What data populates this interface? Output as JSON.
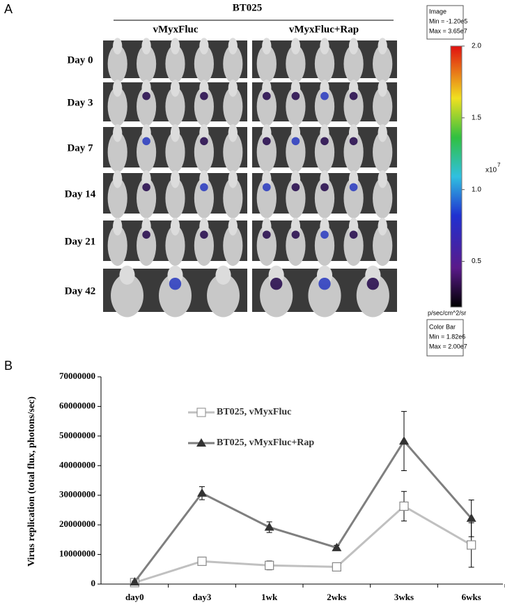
{
  "panel_a": {
    "label": "A",
    "group": "BT025",
    "columns": [
      "vMyxFluc",
      "vMyxFluc+Rap"
    ],
    "rows": [
      "Day 0",
      "Day 3",
      "Day 7",
      "Day 14",
      "Day 21",
      "Day 42"
    ],
    "image_box": [
      "Image",
      "Min = -1.20e5",
      "Max = 3.65e7"
    ],
    "colorbar": {
      "lim": [
        0.182,
        2.0
      ],
      "ticks": [
        {
          "value": 2.0,
          "label": "2.0"
        },
        {
          "value": 1.5,
          "label": "1.5"
        },
        {
          "value": 1.0,
          "label": "1.0"
        },
        {
          "value": 0.5,
          "label": "0.5"
        }
      ],
      "multiplier": "x10",
      "multiplier_exp": "7",
      "unit": "p/sec/cm^2/sr"
    },
    "colorbar_box": [
      "Color Bar",
      "Min = 1.82e6",
      "Max = 2.00e7"
    ]
  },
  "chart_data": {
    "type": "line",
    "panel_label": "B",
    "y_label": "Virus replication (total flux, photons/sec)",
    "categories": [
      "day0",
      "day3",
      "1wk",
      "2wks",
      "3wks",
      "6wks"
    ],
    "ylim": [
      0,
      70000000
    ],
    "yticks": [
      0,
      10000000,
      20000000,
      30000000,
      40000000,
      50000000,
      60000000,
      70000000
    ],
    "series": [
      {
        "name": "BT025, vMyxFluc",
        "color": "#c0c0c0",
        "marker": "square",
        "values": [
          500000,
          7700000,
          6300000,
          5800000,
          26300000,
          13200000
        ],
        "errors": [
          300000,
          500000,
          1500000,
          500000,
          5000000,
          7500000
        ]
      },
      {
        "name": "BT025, vMyxFluc+Rap",
        "color": "#7f7f7f",
        "marker": "triangle",
        "values": [
          700000,
          30700000,
          19200000,
          12300000,
          48300000,
          22200000
        ],
        "errors": [
          300000,
          2200000,
          1800000,
          800000,
          10000000,
          6200000
        ]
      }
    ]
  }
}
